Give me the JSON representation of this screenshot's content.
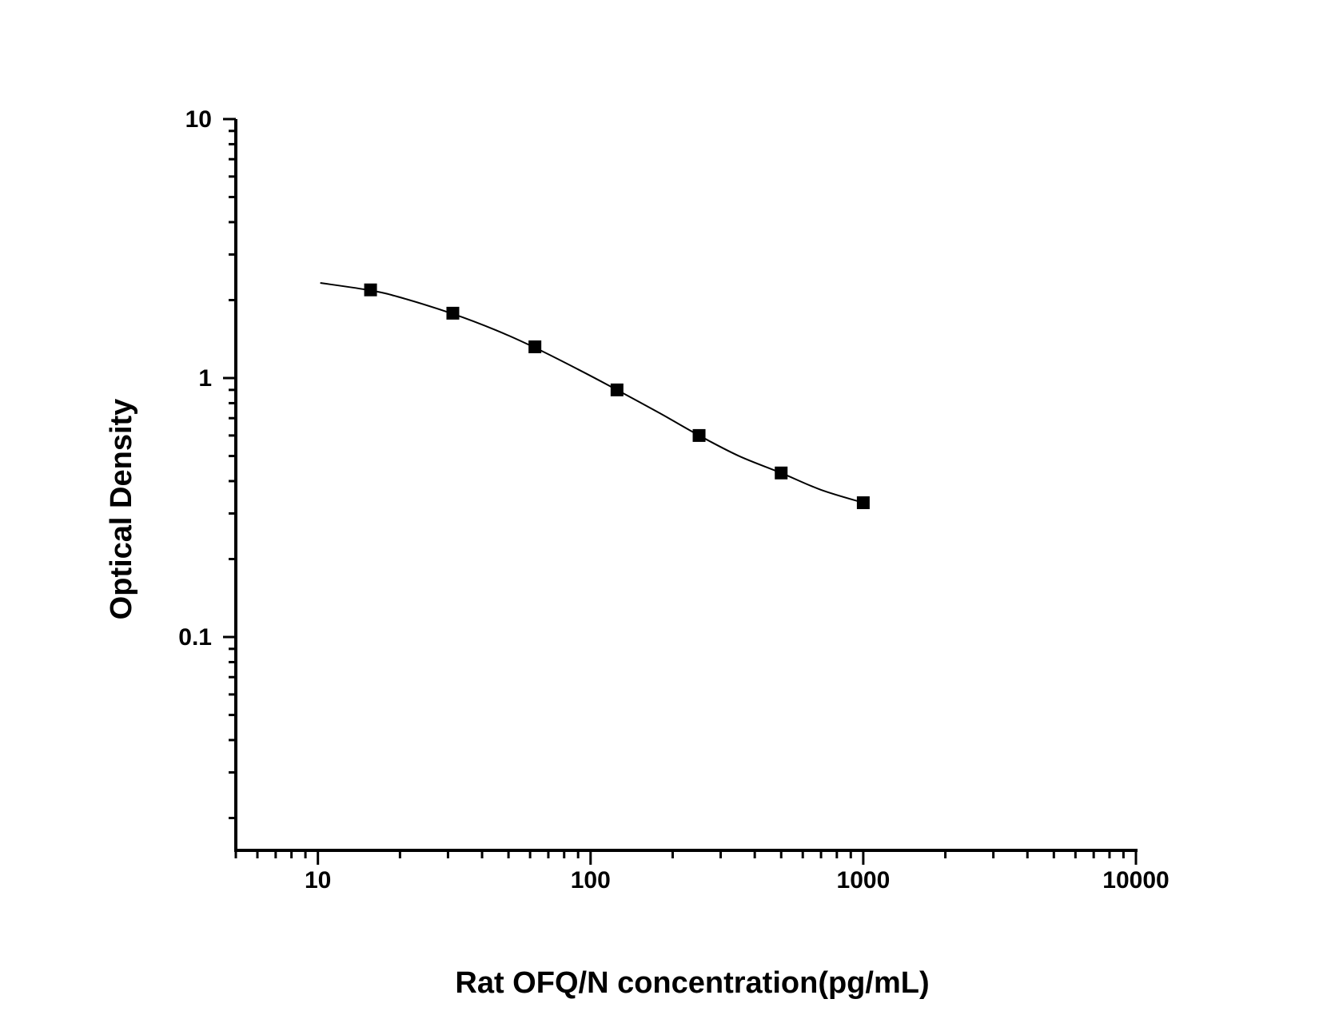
{
  "chart_data": {
    "type": "scatter",
    "title": "",
    "xlabel": "Rat OFQ/N concentration(pg/mL)",
    "ylabel": "Optical Density",
    "xscale": "log",
    "yscale": "log",
    "xlim": [
      5,
      10000
    ],
    "ylim": [
      0.015,
      10
    ],
    "x_ticks": [
      10,
      100,
      1000,
      10000
    ],
    "x_tick_labels": [
      "10",
      "100",
      "1000",
      "10000"
    ],
    "y_ticks": [
      0.1,
      1,
      10
    ],
    "y_tick_labels": [
      "0.1",
      "1",
      "10"
    ],
    "grid": false,
    "legend": null,
    "series": [
      {
        "name": "Standard points",
        "marker": "square",
        "color": "#000000",
        "x": [
          15.6,
          31.25,
          62.5,
          125,
          250,
          500,
          1000
        ],
        "y": [
          2.19,
          1.78,
          1.32,
          0.9,
          0.6,
          0.43,
          0.33
        ]
      },
      {
        "name": "Fitted curve",
        "type": "line",
        "color": "#000000",
        "x": [
          10.2,
          15.6,
          20,
          31.25,
          45,
          62.5,
          90,
          125,
          180,
          250,
          350,
          500,
          700,
          1000
        ],
        "y": [
          2.33,
          2.18,
          2.05,
          1.77,
          1.53,
          1.31,
          1.08,
          0.9,
          0.73,
          0.6,
          0.5,
          0.43,
          0.37,
          0.33
        ]
      }
    ]
  }
}
